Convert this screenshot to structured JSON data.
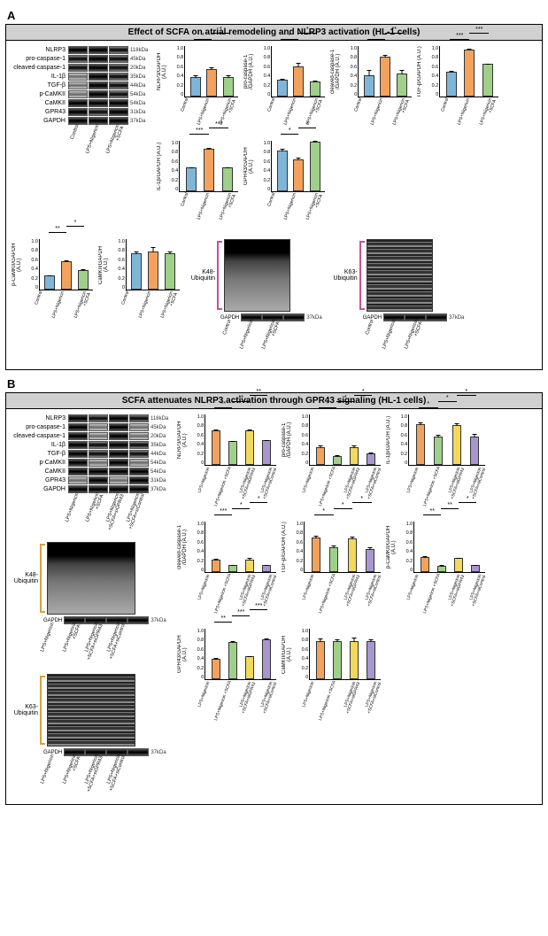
{
  "panelA": {
    "label": "A",
    "title": "Effect of SCFA on atrial remodeling and NLRP3 activation (HL-1 cells)",
    "blots": [
      {
        "name": "NLRP3",
        "kda": "118kDa",
        "bands": [
          "d",
          "d",
          "m"
        ]
      },
      {
        "name": "pro-caspase-1",
        "kda": "45kDa",
        "bands": [
          "m",
          "d",
          "m"
        ]
      },
      {
        "name": "cleaved-caspase-1",
        "kda": "20kDa",
        "bands": [
          "m",
          "d",
          "m"
        ]
      },
      {
        "name": "IL-1β",
        "kda": "35kDa",
        "bands": [
          "l",
          "d",
          "m"
        ]
      },
      {
        "name": "TGF-β",
        "kda": "44kDa",
        "bands": [
          "l",
          "d",
          "m"
        ]
      },
      {
        "name": "p-CaMKII",
        "kda": "54kDa",
        "bands": [
          "l",
          "d",
          "m"
        ]
      },
      {
        "name": "CaMKII",
        "kda": "54kDa",
        "bands": [
          "d",
          "d",
          "d"
        ]
      },
      {
        "name": "GPR43",
        "kda": "31kDa",
        "bands": [
          "d",
          "m",
          "d"
        ]
      },
      {
        "name": "GAPDH",
        "kda": "37kDa",
        "bands": [
          "d",
          "d",
          "d"
        ]
      }
    ],
    "conditions3": [
      "Control",
      "LPS+Nigericin",
      "LPS+Nigericin\n+SCFA"
    ],
    "ubiquitin": [
      {
        "label": "K48-\nUbiquitin",
        "color": "#c94f9a",
        "gapdh": "GAPDH",
        "kda": "37kDa"
      },
      {
        "label": "K63-\nUbiquitin",
        "color": "#c94f9a",
        "gapdh": "GAPDH",
        "kda": "37kDa"
      }
    ],
    "charts": [
      {
        "ylabel": "NLRP3/GAPDH (A.U.)",
        "ymax": 1.0,
        "yticks": [
          "1.0",
          "0.8",
          "0.6",
          "0.4",
          "0.2",
          "0"
        ],
        "vals": [
          0.38,
          0.54,
          0.38
        ],
        "err": [
          0.05,
          0.05,
          0.05
        ],
        "sigs": [
          [
            "*",
            0,
            1
          ],
          [
            "*",
            1,
            2
          ]
        ]
      },
      {
        "ylabel": "pro-caspase-1\n/GAPDH (A.U.)",
        "ymax": 1.0,
        "yticks": [
          "1.0",
          "0.8",
          "0.6",
          "0.4",
          "0.2",
          "0"
        ],
        "vals": [
          0.32,
          0.58,
          0.3
        ],
        "err": [
          0.04,
          0.1,
          0.03
        ],
        "sigs": [
          [
            "*",
            0,
            1
          ],
          [
            "*",
            1,
            2
          ]
        ]
      },
      {
        "ylabel": "cleaved-caspase-1\n/GAPDH (A.U.)",
        "ymax": 1.0,
        "yticks": [
          "1.0",
          "0.8",
          "0.6",
          "0.4",
          "0.2",
          "0"
        ],
        "vals": [
          0.42,
          0.78,
          0.44
        ],
        "err": [
          0.12,
          0.05,
          0.1
        ],
        "sigs": [
          [
            "*",
            0,
            1
          ],
          [
            "**",
            1,
            2
          ]
        ]
      },
      {
        "ylabel": "TGF-β/GAPDH (A.U.)",
        "ymax": 1.0,
        "yticks": [
          "1.0",
          "0.8",
          "0.6",
          "0.4",
          "0.2",
          "0"
        ],
        "vals": [
          0.49,
          0.92,
          0.64
        ],
        "err": [
          0.02,
          0.02,
          0.02
        ],
        "sigs": [
          [
            "***",
            0,
            1
          ],
          [
            "***",
            1,
            2
          ]
        ]
      },
      {
        "ylabel": "IL-1β/GAPDH (A.U.)",
        "ymax": 1.0,
        "yticks": [
          "1.0",
          "0.8",
          "0.6",
          "0.4",
          "0.2",
          "0"
        ],
        "vals": [
          0.46,
          0.82,
          0.46
        ],
        "err": [
          0.03,
          0.04,
          0.03
        ],
        "sigs": [
          [
            "***",
            0,
            1
          ],
          [
            "***",
            1,
            2
          ]
        ]
      },
      {
        "ylabel": "GPR43/GAPDH (A.U.)",
        "ymax": 1.0,
        "yticks": [
          "1.0",
          "0.8",
          "0.6",
          "0.4",
          "0.2",
          "0"
        ],
        "vals": [
          0.8,
          0.62,
          0.96
        ],
        "err": [
          0.05,
          0.05,
          0.04
        ],
        "sigs": [
          [
            "*",
            0,
            1
          ],
          [
            "*",
            1,
            2
          ]
        ]
      },
      {
        "ylabel": "p-CaMKII/GAPDH (A.U.)",
        "ymax": 1.0,
        "yticks": [
          "1.0",
          "0.8",
          "0.6",
          "0.4",
          "0.2",
          "0"
        ],
        "vals": [
          0.27,
          0.55,
          0.38
        ],
        "err": [
          0.03,
          0.04,
          0.03
        ],
        "sigs": [
          [
            "**",
            0,
            1
          ],
          [
            "*",
            1,
            2
          ]
        ]
      },
      {
        "ylabel": "CaMKII/GAPDH (A.U.)",
        "ymax": 1.0,
        "yticks": [
          "1.0",
          "0.8",
          "0.6",
          "0.4",
          "0.2",
          "0"
        ],
        "vals": [
          0.7,
          0.75,
          0.7
        ],
        "err": [
          0.06,
          0.1,
          0.06
        ],
        "sigs": []
      }
    ],
    "colors3": [
      "#7fb6d8",
      "#f2a25c",
      "#9fd08a"
    ]
  },
  "panelB": {
    "label": "B",
    "title": "SCFA attenuates NLRP3 activation through GPR43 signaling (HL-1 cells)",
    "blots": [
      {
        "name": "NLRP3",
        "kda": "118kDa",
        "bands": [
          "d",
          "m",
          "d",
          "m"
        ]
      },
      {
        "name": "pro-caspase-1",
        "kda": "45kDa",
        "bands": [
          "d",
          "l",
          "d",
          "l"
        ]
      },
      {
        "name": "cleaved-caspase-1",
        "kda": "20kDa",
        "bands": [
          "d",
          "l",
          "d",
          "l"
        ]
      },
      {
        "name": "IL-1β",
        "kda": "35kDa",
        "bands": [
          "d",
          "m",
          "d",
          "m"
        ]
      },
      {
        "name": "TGF-β",
        "kda": "44kDa",
        "bands": [
          "d",
          "m",
          "d",
          "m"
        ]
      },
      {
        "name": "p-CaMKII",
        "kda": "54kDa",
        "bands": [
          "d",
          "l",
          "d",
          "l"
        ]
      },
      {
        "name": "CaMKII",
        "kda": "54kDa",
        "bands": [
          "d",
          "d",
          "d",
          "d"
        ]
      },
      {
        "name": "GPR43",
        "kda": "31kDa",
        "bands": [
          "l",
          "d",
          "l",
          "d"
        ]
      },
      {
        "name": "GAPDH",
        "kda": "37kDa",
        "bands": [
          "d",
          "d",
          "d",
          "d"
        ]
      }
    ],
    "conditions4": [
      "LPS+Nigericin",
      "LPS+Nigericin\n+SCFA",
      "LPS+Nigericin\n+SCFA+siGPR43",
      "LPS+Nigericin\n+SCFA+siControl"
    ],
    "ubiquitin": [
      {
        "label": "K48-\nUbiquitin",
        "color": "#d8a23d",
        "gapdh": "GAPDH",
        "kda": "37kDa"
      },
      {
        "label": "K63-\nUbiquitin",
        "color": "#d8a23d",
        "gapdh": "GAPDH",
        "kda": "37kDa"
      }
    ],
    "charts": [
      {
        "ylabel": "NLRP3/GAPDH (A.U.)",
        "ymax": 1.0,
        "yticks": [
          "1.0",
          "0.8",
          "0.6",
          "0.4",
          "0.2",
          "0"
        ],
        "vals": [
          0.68,
          0.46,
          0.68,
          0.48
        ],
        "err": [
          0.03,
          0.02,
          0.03,
          0.02
        ],
        "sigs": [
          [
            "**",
            0,
            1
          ],
          [
            "**",
            1,
            2
          ],
          [
            "**",
            2,
            3
          ]
        ]
      },
      {
        "ylabel": "pro-caspase-1\n/GAPDH (A.U.)",
        "ymax": 1.0,
        "yticks": [
          "1.0",
          "0.8",
          "0.6",
          "0.4",
          "0.2",
          "0"
        ],
        "vals": [
          0.34,
          0.18,
          0.35,
          0.22
        ],
        "err": [
          0.06,
          0.02,
          0.04,
          0.04
        ],
        "sigs": [
          [
            "*",
            0,
            1
          ],
          [
            "*",
            1,
            2
          ],
          [
            "*",
            2,
            3
          ]
        ]
      },
      {
        "ylabel": "IL-1β/GAPDH (A.U.)",
        "ymax": 1.0,
        "yticks": [
          "1.0",
          "0.8",
          "0.6",
          "0.4",
          "0.2",
          "0"
        ],
        "vals": [
          0.8,
          0.56,
          0.78,
          0.55
        ],
        "err": [
          0.05,
          0.04,
          0.05,
          0.07
        ],
        "sigs": [
          [
            "*",
            0,
            1
          ],
          [
            "*",
            1,
            2
          ],
          [
            "*",
            2,
            3
          ]
        ]
      },
      {
        "ylabel": "cleaved-caspase-1\n/GAPDH (A.U.)",
        "ymax": 1.0,
        "yticks": [
          "1.0",
          "0.8",
          "0.6",
          "0.4",
          "0.2",
          "0"
        ],
        "vals": [
          0.25,
          0.14,
          0.25,
          0.14
        ],
        "err": [
          0.02,
          0.01,
          0.04,
          0.02
        ],
        "sigs": [
          [
            "***",
            0,
            1
          ],
          [
            "*",
            1,
            2
          ],
          [
            "*",
            2,
            3
          ]
        ]
      },
      {
        "ylabel": "TGF-β/GAPDH (A.U.)",
        "ymax": 1.0,
        "yticks": [
          "1.0",
          "0.8",
          "0.6",
          "0.4",
          "0.2",
          "0"
        ],
        "vals": [
          0.68,
          0.48,
          0.66,
          0.45
        ],
        "err": [
          0.04,
          0.05,
          0.05,
          0.05
        ],
        "sigs": [
          [
            "*",
            0,
            1
          ],
          [
            "*",
            1,
            2
          ],
          [
            "*",
            2,
            3
          ]
        ]
      },
      {
        "ylabel": "p-CaMKII/GAPDH (A.U.)",
        "ymax": 1.0,
        "yticks": [
          "1.0",
          "0.8",
          "0.6",
          "0.4",
          "0.2",
          "0"
        ],
        "vals": [
          0.3,
          0.12,
          0.27,
          0.13
        ],
        "err": [
          0.03,
          0.03,
          0.03,
          0.02
        ],
        "sigs": [
          [
            "**",
            0,
            1
          ],
          [
            "**",
            1,
            2
          ],
          [
            "*",
            2,
            3
          ]
        ]
      },
      {
        "ylabel": "GPR43/GAPDH (A.U.)",
        "ymax": 1.0,
        "yticks": [
          "1.0",
          "0.8",
          "0.6",
          "0.4",
          "0.2",
          "0"
        ],
        "vals": [
          0.4,
          0.72,
          0.44,
          0.78
        ],
        "err": [
          0.04,
          0.04,
          0.03,
          0.03
        ],
        "sigs": [
          [
            "**",
            0,
            1
          ],
          [
            "***",
            1,
            2
          ],
          [
            "***",
            2,
            3
          ]
        ]
      },
      {
        "ylabel": "CaMKII/GAPDH (A.U.)",
        "ymax": 1.0,
        "yticks": [
          "1.0",
          "0.8",
          "0.6",
          "0.4",
          "0.2",
          "0"
        ],
        "vals": [
          0.74,
          0.75,
          0.74,
          0.75
        ],
        "err": [
          0.07,
          0.04,
          0.08,
          0.05
        ],
        "sigs": []
      }
    ],
    "colors4": [
      "#f2a25c",
      "#9fd08a",
      "#f2d95c",
      "#a896d1"
    ]
  }
}
